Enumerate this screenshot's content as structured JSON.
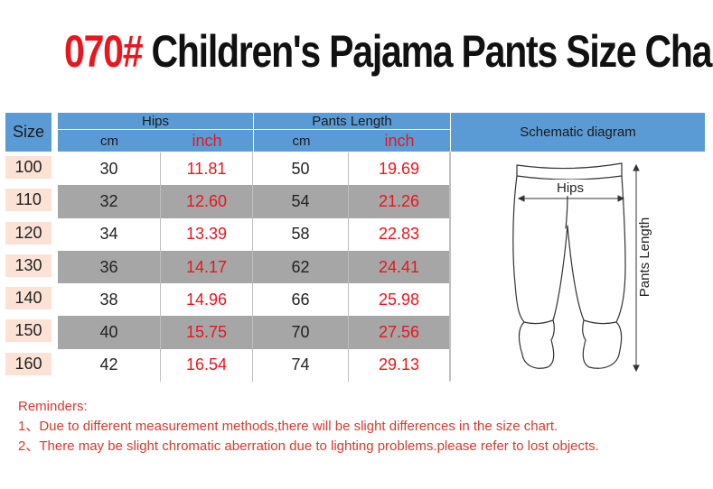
{
  "title": {
    "code": "070#",
    "name": " Children's Pajama Pants Size Chart"
  },
  "colors": {
    "accent_red": "#e8161e",
    "header_blue": "#5b9bd5",
    "row_shade": "#a6a6a6",
    "size_badge": "#fbe2d5"
  },
  "table": {
    "size_header": "Size",
    "hips_header": "Hips",
    "length_header": "Pants Length",
    "schematic_header": "Schematic diagram",
    "units": [
      "cm",
      "inch",
      "cm",
      "inch"
    ],
    "rows": [
      {
        "size": "100",
        "hips_cm": "30",
        "hips_inch": "11.81",
        "len_cm": "50",
        "len_inch": "19.69"
      },
      {
        "size": "110",
        "hips_cm": "32",
        "hips_inch": "12.60",
        "len_cm": "54",
        "len_inch": "21.26"
      },
      {
        "size": "120",
        "hips_cm": "34",
        "hips_inch": "13.39",
        "len_cm": "58",
        "len_inch": "22.83"
      },
      {
        "size": "130",
        "hips_cm": "36",
        "hips_inch": "14.17",
        "len_cm": "62",
        "len_inch": "24.41"
      },
      {
        "size": "140",
        "hips_cm": "38",
        "hips_inch": "14.96",
        "len_cm": "66",
        "len_inch": "25.98"
      },
      {
        "size": "150",
        "hips_cm": "40",
        "hips_inch": "15.75",
        "len_cm": "70",
        "len_inch": "27.56"
      },
      {
        "size": "160",
        "hips_cm": "42",
        "hips_inch": "16.54",
        "len_cm": "74",
        "len_inch": "29.13"
      }
    ]
  },
  "diagram": {
    "hips_label": "Hips",
    "length_label": "Pants Length"
  },
  "reminders": {
    "heading": "Reminders:",
    "line1": "1、Due to different measurement methods,there will be slight differences in the size chart.",
    "line2": "2、There may be slight chromatic aberration due to lighting problems.please refer to lost objects."
  }
}
